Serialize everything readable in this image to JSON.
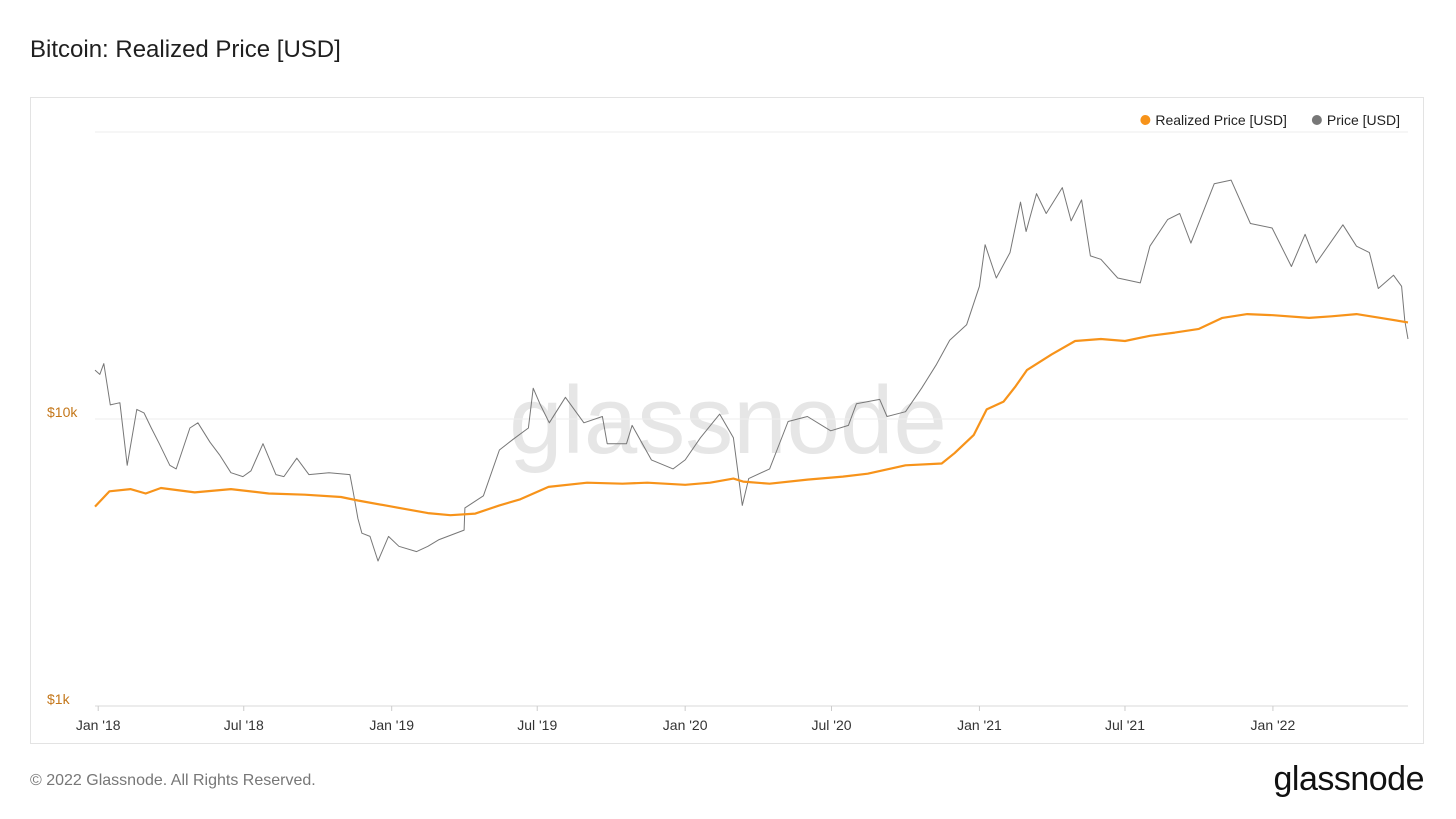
{
  "header": {
    "title": "Bitcoin: Realized Price [USD]"
  },
  "footer": {
    "copyright": "© 2022 Glassnode. All Rights Reserved.",
    "brand": "glassnode"
  },
  "watermark": "glassnode",
  "chart_data": {
    "type": "line",
    "title": "Bitcoin: Realized Price [USD]",
    "y_scale": "log",
    "ylim": [
      1000,
      100000
    ],
    "y_ticks": [
      {
        "value": 1000,
        "label": "$1k"
      },
      {
        "value": 10000,
        "label": "$10k"
      }
    ],
    "xlim": [
      "2017-12-28",
      "2022-06-18"
    ],
    "x_ticks": [
      {
        "date": "2018-01-01",
        "label": "Jan '18"
      },
      {
        "date": "2018-07-01",
        "label": "Jul '18"
      },
      {
        "date": "2019-01-01",
        "label": "Jan '19"
      },
      {
        "date": "2019-07-01",
        "label": "Jul '19"
      },
      {
        "date": "2020-01-01",
        "label": "Jan '20"
      },
      {
        "date": "2020-07-01",
        "label": "Jul '20"
      },
      {
        "date": "2021-01-01",
        "label": "Jan '21"
      },
      {
        "date": "2021-07-01",
        "label": "Jul '21"
      },
      {
        "date": "2022-01-01",
        "label": "Jan '22"
      }
    ],
    "grid": true,
    "legend_position": "top-right",
    "series": [
      {
        "name": "Realized Price [USD]",
        "color": "#f7931a",
        "points": [
          [
            "2017-12-28",
            4950
          ],
          [
            "2018-01-15",
            5600
          ],
          [
            "2018-02-10",
            5700
          ],
          [
            "2018-03-01",
            5500
          ],
          [
            "2018-03-20",
            5750
          ],
          [
            "2018-05-01",
            5550
          ],
          [
            "2018-06-15",
            5700
          ],
          [
            "2018-08-01",
            5500
          ],
          [
            "2018-09-15",
            5450
          ],
          [
            "2018-10-30",
            5350
          ],
          [
            "2018-11-20",
            5200
          ],
          [
            "2019-01-01",
            4950
          ],
          [
            "2019-02-15",
            4700
          ],
          [
            "2019-03-15",
            4620
          ],
          [
            "2019-04-15",
            4680
          ],
          [
            "2019-05-15",
            5000
          ],
          [
            "2019-06-10",
            5250
          ],
          [
            "2019-07-15",
            5800
          ],
          [
            "2019-09-01",
            6000
          ],
          [
            "2019-10-15",
            5950
          ],
          [
            "2019-11-15",
            6000
          ],
          [
            "2020-01-01",
            5900
          ],
          [
            "2020-02-01",
            6000
          ],
          [
            "2020-03-01",
            6200
          ],
          [
            "2020-03-13",
            6050
          ],
          [
            "2020-04-15",
            5950
          ],
          [
            "2020-06-01",
            6150
          ],
          [
            "2020-07-15",
            6300
          ],
          [
            "2020-08-15",
            6450
          ],
          [
            "2020-10-01",
            6900
          ],
          [
            "2020-11-15",
            7000
          ],
          [
            "2020-12-01",
            7600
          ],
          [
            "2020-12-25",
            8800
          ],
          [
            "2021-01-10",
            10800
          ],
          [
            "2021-01-31",
            11500
          ],
          [
            "2021-02-15",
            13000
          ],
          [
            "2021-03-01",
            14800
          ],
          [
            "2021-04-01",
            16800
          ],
          [
            "2021-04-30",
            18700
          ],
          [
            "2021-06-01",
            19000
          ],
          [
            "2021-07-01",
            18700
          ],
          [
            "2021-08-01",
            19500
          ],
          [
            "2021-09-01",
            20000
          ],
          [
            "2021-10-01",
            20600
          ],
          [
            "2021-10-30",
            22500
          ],
          [
            "2021-11-30",
            23200
          ],
          [
            "2022-01-01",
            23000
          ],
          [
            "2022-02-15",
            22500
          ],
          [
            "2022-03-15",
            22800
          ],
          [
            "2022-04-15",
            23200
          ],
          [
            "2022-05-15",
            22500
          ],
          [
            "2022-06-18",
            21700
          ]
        ]
      },
      {
        "name": "Price [USD]",
        "color": "#777777",
        "points": [
          [
            "2017-12-28",
            14800
          ],
          [
            "2018-01-03",
            14300
          ],
          [
            "2018-01-08",
            15600
          ],
          [
            "2018-01-16",
            11200
          ],
          [
            "2018-01-28",
            11400
          ],
          [
            "2018-02-06",
            6900
          ],
          [
            "2018-02-18",
            10800
          ],
          [
            "2018-02-27",
            10500
          ],
          [
            "2018-03-08",
            9300
          ],
          [
            "2018-03-18",
            8200
          ],
          [
            "2018-03-31",
            6900
          ],
          [
            "2018-04-08",
            6700
          ],
          [
            "2018-04-25",
            9300
          ],
          [
            "2018-05-05",
            9700
          ],
          [
            "2018-05-20",
            8300
          ],
          [
            "2018-06-01",
            7500
          ],
          [
            "2018-06-15",
            6500
          ],
          [
            "2018-06-30",
            6300
          ],
          [
            "2018-07-10",
            6600
          ],
          [
            "2018-07-25",
            8200
          ],
          [
            "2018-08-10",
            6400
          ],
          [
            "2018-08-20",
            6300
          ],
          [
            "2018-09-05",
            7300
          ],
          [
            "2018-09-20",
            6400
          ],
          [
            "2018-10-15",
            6500
          ],
          [
            "2018-11-10",
            6400
          ],
          [
            "2018-11-14",
            5600
          ],
          [
            "2018-11-20",
            4500
          ],
          [
            "2018-11-25",
            4000
          ],
          [
            "2018-12-05",
            3900
          ],
          [
            "2018-12-15",
            3200
          ],
          [
            "2018-12-28",
            3900
          ],
          [
            "2019-01-10",
            3600
          ],
          [
            "2019-02-01",
            3450
          ],
          [
            "2019-02-15",
            3600
          ],
          [
            "2019-03-01",
            3800
          ],
          [
            "2019-04-01",
            4100
          ],
          [
            "2019-04-02",
            4900
          ],
          [
            "2019-04-25",
            5400
          ],
          [
            "2019-05-15",
            7800
          ],
          [
            "2019-06-01",
            8500
          ],
          [
            "2019-06-20",
            9300
          ],
          [
            "2019-06-26",
            12800
          ],
          [
            "2019-07-05",
            11200
          ],
          [
            "2019-07-16",
            9700
          ],
          [
            "2019-08-05",
            11900
          ],
          [
            "2019-08-28",
            9700
          ],
          [
            "2019-09-20",
            10200
          ],
          [
            "2019-09-26",
            8200
          ],
          [
            "2019-10-20",
            8200
          ],
          [
            "2019-10-27",
            9500
          ],
          [
            "2019-11-20",
            7200
          ],
          [
            "2019-12-17",
            6700
          ],
          [
            "2020-01-01",
            7200
          ],
          [
            "2020-01-20",
            8600
          ],
          [
            "2020-02-13",
            10400
          ],
          [
            "2020-03-01",
            8600
          ],
          [
            "2020-03-12",
            5000
          ],
          [
            "2020-03-20",
            6200
          ],
          [
            "2020-04-15",
            6700
          ],
          [
            "2020-05-08",
            9800
          ],
          [
            "2020-06-01",
            10200
          ],
          [
            "2020-06-30",
            9100
          ],
          [
            "2020-07-22",
            9500
          ],
          [
            "2020-08-01",
            11300
          ],
          [
            "2020-08-30",
            11700
          ],
          [
            "2020-09-08",
            10200
          ],
          [
            "2020-10-01",
            10600
          ],
          [
            "2020-10-21",
            12800
          ],
          [
            "2020-11-08",
            15400
          ],
          [
            "2020-11-25",
            18800
          ],
          [
            "2020-12-16",
            21300
          ],
          [
            "2021-01-01",
            29000
          ],
          [
            "2021-01-08",
            40500
          ],
          [
            "2021-01-22",
            31000
          ],
          [
            "2021-02-08",
            38000
          ],
          [
            "2021-02-21",
            57000
          ],
          [
            "2021-02-28",
            45000
          ],
          [
            "2021-03-13",
            61000
          ],
          [
            "2021-03-25",
            52000
          ],
          [
            "2021-04-14",
            64000
          ],
          [
            "2021-04-25",
            49000
          ],
          [
            "2021-05-08",
            58000
          ],
          [
            "2021-05-19",
            37000
          ],
          [
            "2021-06-01",
            36000
          ],
          [
            "2021-06-22",
            31000
          ],
          [
            "2021-07-20",
            29800
          ],
          [
            "2021-08-01",
            40000
          ],
          [
            "2021-08-23",
            49500
          ],
          [
            "2021-09-07",
            52000
          ],
          [
            "2021-09-21",
            41000
          ],
          [
            "2021-10-20",
            66000
          ],
          [
            "2021-11-10",
            68000
          ],
          [
            "2021-12-04",
            48000
          ],
          [
            "2021-12-31",
            46300
          ],
          [
            "2022-01-24",
            34000
          ],
          [
            "2022-02-10",
            44000
          ],
          [
            "2022-02-24",
            35000
          ],
          [
            "2022-03-29",
            47500
          ],
          [
            "2022-04-15",
            40000
          ],
          [
            "2022-05-01",
            38000
          ],
          [
            "2022-05-12",
            28500
          ],
          [
            "2022-05-31",
            31700
          ],
          [
            "2022-06-10",
            29000
          ],
          [
            "2022-06-14",
            22000
          ],
          [
            "2022-06-18",
            19000
          ]
        ]
      }
    ]
  }
}
